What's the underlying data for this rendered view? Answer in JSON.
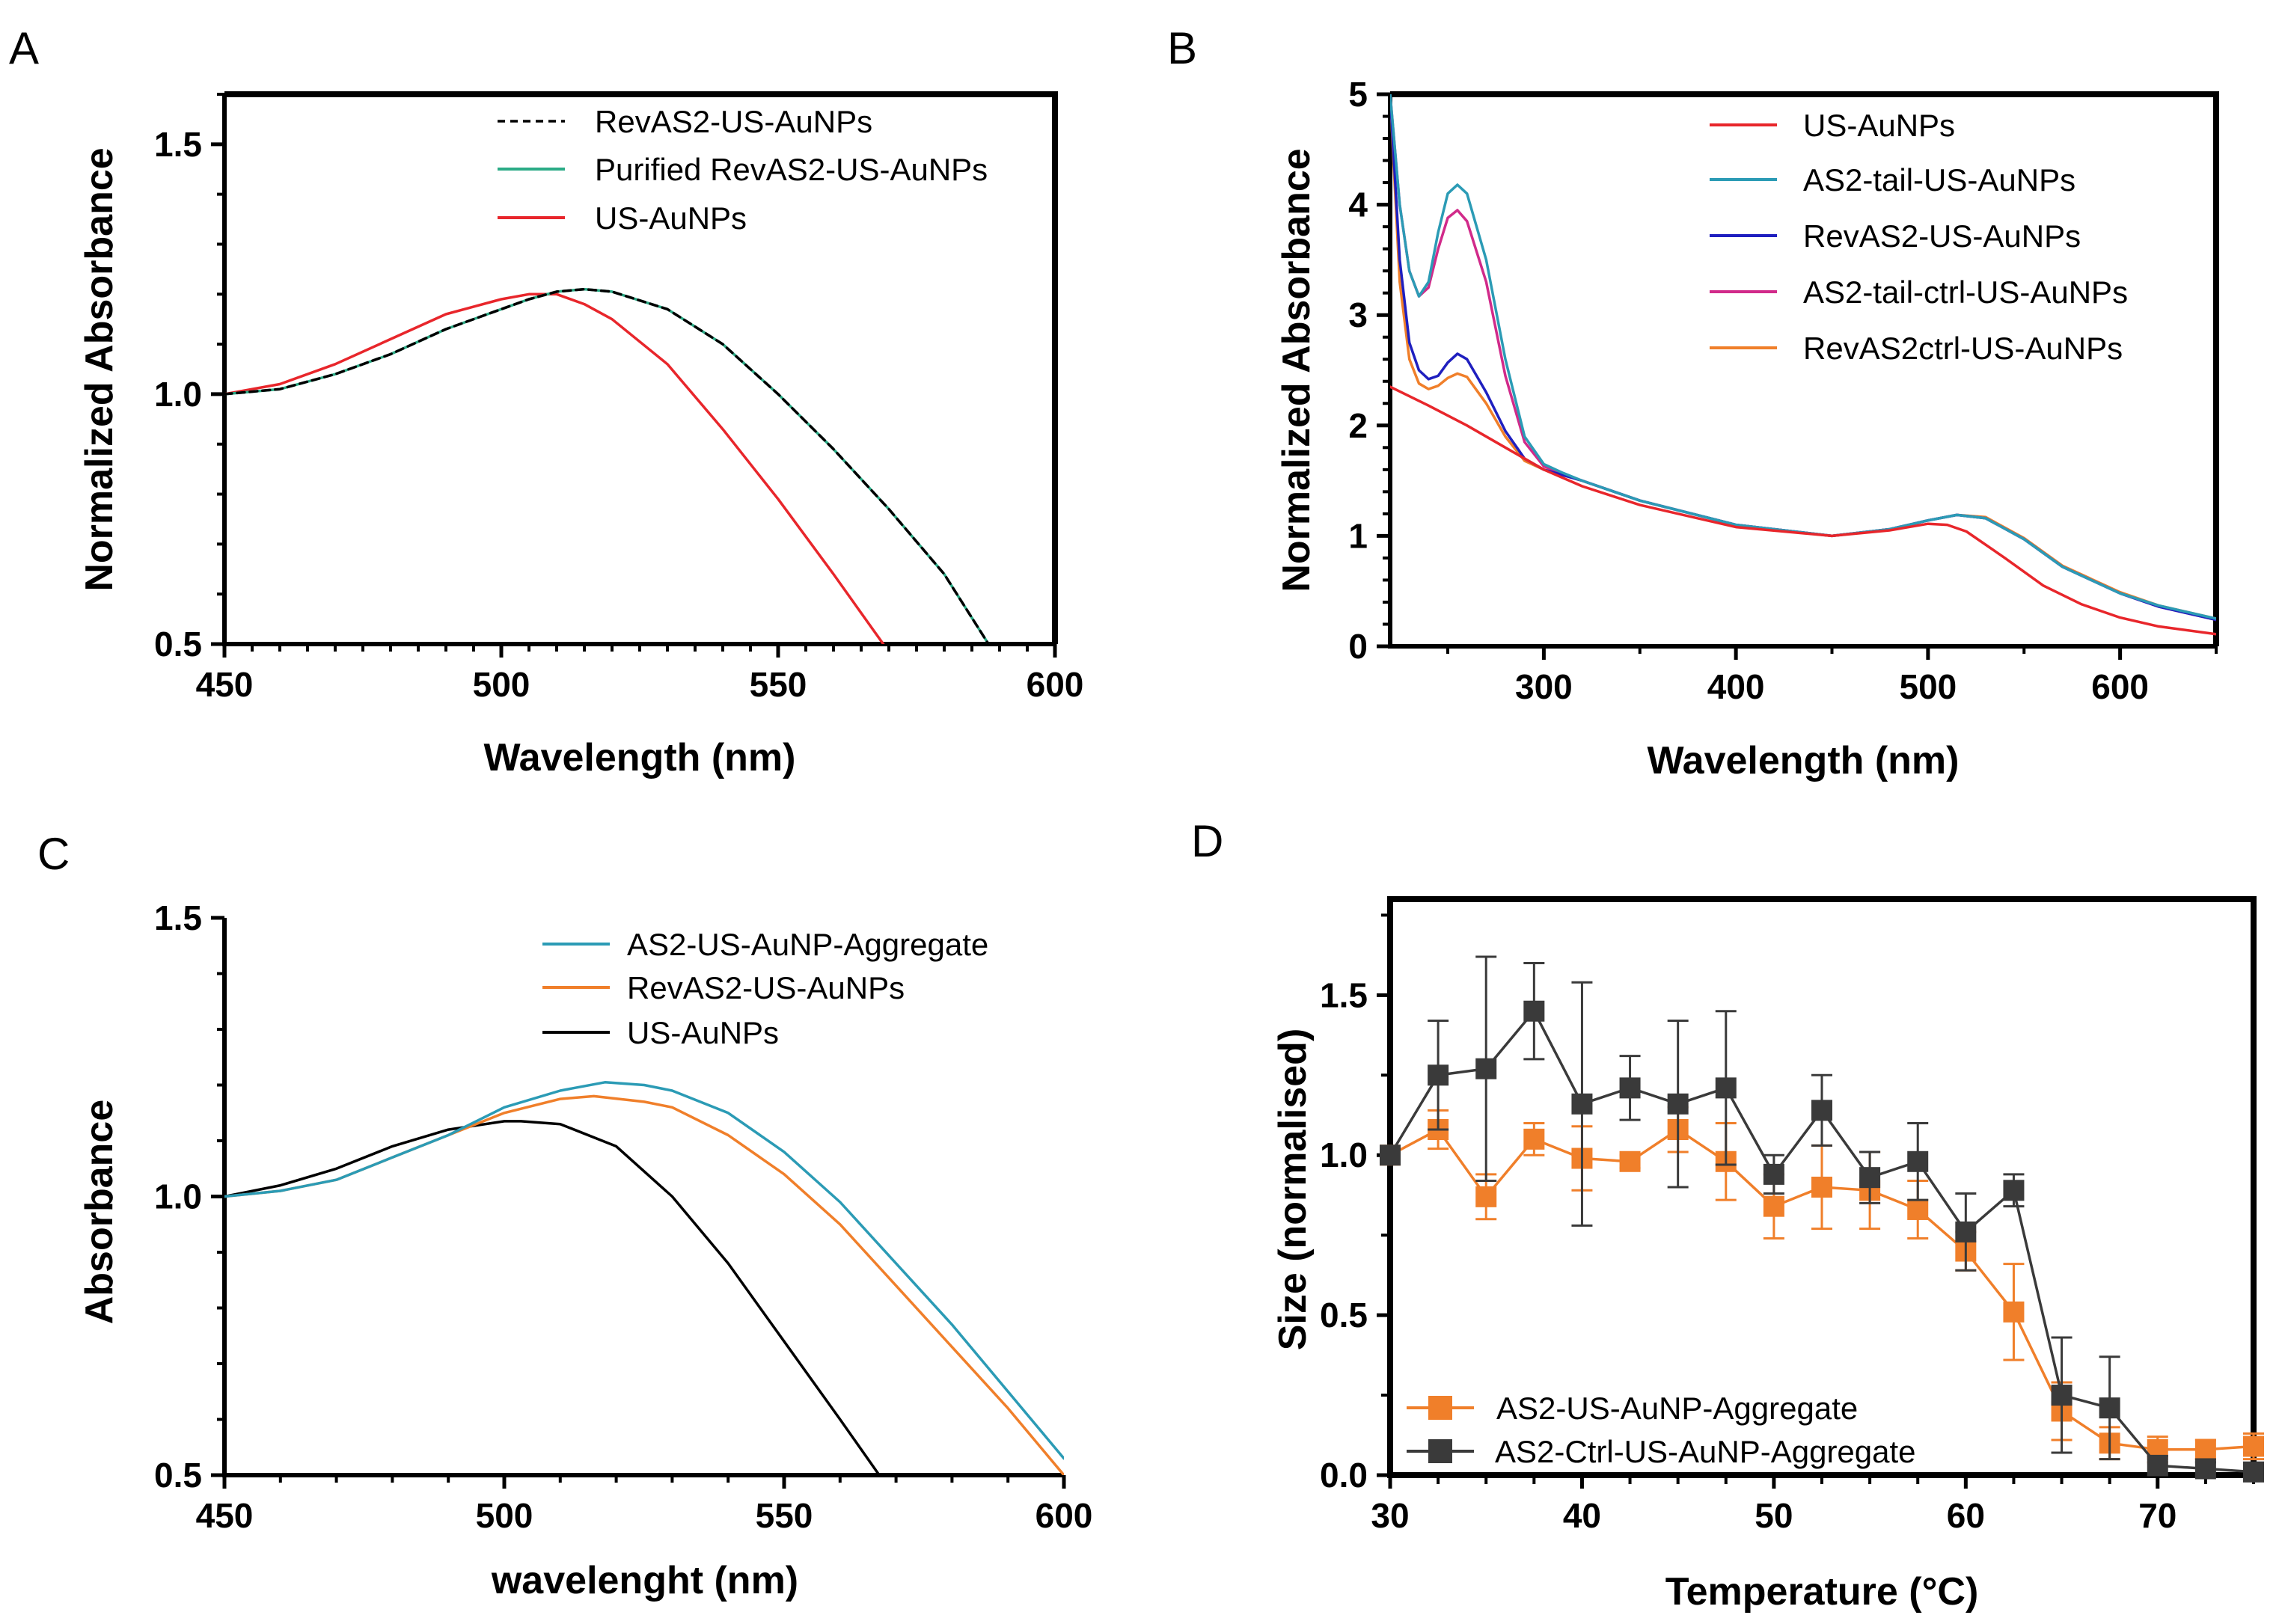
{
  "panels": [
    {
      "letter": "A",
      "chart_data": {
        "type": "line",
        "title": "",
        "xlabel": "Wavelength (nm)",
        "ylabel": "Normalized Absorbance",
        "xlim": [
          450,
          600
        ],
        "ylim": [
          0.5,
          1.6
        ],
        "xticks": [
          450,
          500,
          550,
          600
        ],
        "xtick_labels": [
          "450",
          "500",
          "550",
          "600"
        ],
        "yticks": [
          0.5,
          1.0,
          1.5
        ],
        "ytick_labels": [
          "0.5",
          "1.0",
          "1.5"
        ],
        "grid": false,
        "legend_position": "top-center",
        "series": [
          {
            "name": "RevAS2-US-AuNPs",
            "color": "#000000",
            "dashed": true,
            "x": [
              450,
              460,
              470,
              480,
              490,
              500,
              505,
              510,
              515,
              520,
              530,
              540,
              550,
              560,
              570,
              580,
              588
            ],
            "y": [
              1.0,
              1.01,
              1.04,
              1.08,
              1.13,
              1.17,
              1.19,
              1.205,
              1.21,
              1.205,
              1.17,
              1.1,
              1.0,
              0.89,
              0.77,
              0.64,
              0.5
            ]
          },
          {
            "name": "Purified RevAS2-US-AuNPs",
            "color": "#2bab86",
            "dashed": false,
            "x": [
              450,
              460,
              470,
              480,
              490,
              500,
              505,
              510,
              515,
              520,
              530,
              540,
              550,
              560,
              570,
              580,
              588
            ],
            "y": [
              1.0,
              1.01,
              1.04,
              1.08,
              1.13,
              1.17,
              1.19,
              1.205,
              1.21,
              1.205,
              1.17,
              1.1,
              1.0,
              0.89,
              0.77,
              0.64,
              0.5
            ]
          },
          {
            "name": "US-AuNPs",
            "color": "#e8262b",
            "dashed": false,
            "x": [
              450,
              460,
              470,
              480,
              490,
              500,
              505,
              510,
              515,
              520,
              530,
              540,
              550,
              560,
              569
            ],
            "y": [
              1.0,
              1.02,
              1.06,
              1.11,
              1.16,
              1.19,
              1.2,
              1.2,
              1.18,
              1.15,
              1.06,
              0.93,
              0.79,
              0.64,
              0.5
            ]
          }
        ]
      }
    },
    {
      "letter": "B",
      "chart_data": {
        "type": "line",
        "title": "",
        "xlabel": "Wavelength (nm)",
        "ylabel": "Normalized Absorbance",
        "xlim": [
          220,
          650
        ],
        "ylim": [
          0,
          5
        ],
        "xticks": [
          300,
          400,
          500,
          600
        ],
        "xtick_labels": [
          "300",
          "400",
          "500",
          "600"
        ],
        "yticks": [
          0,
          1,
          2,
          3,
          4,
          5
        ],
        "ytick_labels": [
          "0",
          "1",
          "2",
          "3",
          "4",
          "5"
        ],
        "grid": false,
        "legend_position": "top-right",
        "series": [
          {
            "name": "US-AuNPs",
            "color": "#e8262b",
            "x": [
              220,
              240,
              260,
              280,
              300,
              320,
              350,
              400,
              450,
              480,
              500,
              510,
              520,
              540,
              560,
              580,
              600,
              620,
              650
            ],
            "y": [
              2.35,
              2.18,
              2.0,
              1.8,
              1.6,
              1.45,
              1.28,
              1.08,
              1.0,
              1.05,
              1.11,
              1.1,
              1.04,
              0.8,
              0.55,
              0.38,
              0.26,
              0.18,
              0.11
            ]
          },
          {
            "name": "AS2-tail-US-AuNPs",
            "color": "#2b9bb5",
            "x": [
              220,
              225,
              230,
              235,
              240,
              245,
              250,
              255,
              260,
              270,
              280,
              290,
              300,
              310,
              320,
              350,
              400,
              450,
              480,
              500,
              515,
              530,
              550,
              570,
              600,
              620,
              650
            ],
            "y": [
              5.0,
              4.0,
              3.4,
              3.17,
              3.3,
              3.75,
              4.1,
              4.18,
              4.1,
              3.5,
              2.6,
              1.9,
              1.65,
              1.57,
              1.5,
              1.32,
              1.1,
              1.0,
              1.06,
              1.14,
              1.19,
              1.16,
              0.97,
              0.72,
              0.48,
              0.37,
              0.25
            ]
          },
          {
            "name": "RevAS2-US-AuNPs",
            "color": "#1f1fbf",
            "x": [
              220,
              225,
              230,
              235,
              240,
              245,
              250,
              255,
              260,
              270,
              280,
              290,
              300,
              310,
              320,
              350,
              400,
              450,
              480,
              500,
              515,
              530,
              550,
              570,
              600,
              620,
              650
            ],
            "y": [
              5.0,
              3.5,
              2.75,
              2.5,
              2.42,
              2.45,
              2.57,
              2.65,
              2.6,
              2.3,
              1.95,
              1.7,
              1.6,
              1.55,
              1.5,
              1.32,
              1.1,
              1.0,
              1.06,
              1.14,
              1.19,
              1.16,
              0.97,
              0.72,
              0.48,
              0.36,
              0.24
            ]
          },
          {
            "name": "AS2-tail-ctrl-US-AuNPs",
            "color": "#d12a8a",
            "x": [
              220,
              225,
              230,
              235,
              240,
              245,
              250,
              255,
              260,
              270,
              280,
              290,
              300,
              310,
              320,
              350,
              400,
              450,
              480,
              500,
              515,
              530,
              550,
              570,
              600,
              620,
              650
            ],
            "y": [
              5.0,
              4.0,
              3.4,
              3.17,
              3.25,
              3.6,
              3.88,
              3.95,
              3.85,
              3.3,
              2.45,
              1.85,
              1.63,
              1.56,
              1.5,
              1.32,
              1.1,
              1.0,
              1.06,
              1.14,
              1.19,
              1.16,
              0.97,
              0.72,
              0.48,
              0.36,
              0.24
            ]
          },
          {
            "name": "RevAS2ctrl-US-AuNPs",
            "color": "#f07f2a",
            "x": [
              220,
              225,
              230,
              235,
              240,
              245,
              250,
              255,
              260,
              270,
              280,
              290,
              300,
              310,
              320,
              350,
              400,
              450,
              480,
              500,
              515,
              530,
              550,
              570,
              600,
              620,
              650
            ],
            "y": [
              5.0,
              3.3,
              2.6,
              2.38,
              2.33,
              2.36,
              2.43,
              2.47,
              2.44,
              2.2,
              1.9,
              1.68,
              1.6,
              1.55,
              1.5,
              1.32,
              1.1,
              1.0,
              1.06,
              1.14,
              1.19,
              1.17,
              0.98,
              0.73,
              0.49,
              0.37,
              0.25
            ]
          }
        ]
      }
    },
    {
      "letter": "C",
      "chart_data": {
        "type": "line",
        "title": "",
        "xlabel": "wavelenght (nm)",
        "ylabel": "Absorbance",
        "xlim": [
          450,
          600
        ],
        "ylim": [
          0.5,
          1.5
        ],
        "xticks": [
          450,
          500,
          550,
          600
        ],
        "xtick_labels": [
          "450",
          "500",
          "550",
          "600"
        ],
        "yticks": [
          0.5,
          1.0,
          1.5
        ],
        "ytick_labels": [
          "0.5",
          "1.0",
          "1.5"
        ],
        "grid": false,
        "legend_position": "top-right",
        "series": [
          {
            "name": "AS2-US-AuNP-Aggregate",
            "color": "#2b9bb5",
            "x": [
              450,
              460,
              470,
              480,
              490,
              500,
              510,
              518,
              525,
              530,
              540,
              550,
              560,
              570,
              580,
              590,
              600
            ],
            "y": [
              1.0,
              1.01,
              1.03,
              1.07,
              1.11,
              1.16,
              1.19,
              1.205,
              1.2,
              1.19,
              1.15,
              1.08,
              0.99,
              0.88,
              0.77,
              0.65,
              0.53
            ]
          },
          {
            "name": "RevAS2-US-AuNPs",
            "color": "#f07f2a",
            "x": [
              450,
              460,
              470,
              480,
              490,
              500,
              510,
              516,
              525,
              530,
              540,
              550,
              560,
              570,
              580,
              590,
              600
            ],
            "y": [
              1.0,
              1.01,
              1.03,
              1.07,
              1.11,
              1.15,
              1.175,
              1.18,
              1.17,
              1.16,
              1.11,
              1.04,
              0.95,
              0.84,
              0.73,
              0.62,
              0.5
            ]
          },
          {
            "name": "US-AuNPs",
            "color": "#000000",
            "x": [
              450,
              460,
              470,
              480,
              490,
              500,
              503,
              510,
              520,
              530,
              540,
              550,
              560,
              567
            ],
            "y": [
              1.0,
              1.02,
              1.05,
              1.09,
              1.12,
              1.135,
              1.135,
              1.13,
              1.09,
              1.0,
              0.88,
              0.74,
              0.6,
              0.5
            ]
          }
        ]
      }
    },
    {
      "letter": "D",
      "chart_data": {
        "type": "scatter",
        "title": "",
        "xlabel": "Temperature (°C)",
        "ylabel": "Size (normalised)",
        "xlim": [
          30,
          75
        ],
        "ylim": [
          0,
          1.8
        ],
        "xticks": [
          30,
          40,
          50,
          60,
          70
        ],
        "xtick_labels": [
          "30",
          "40",
          "50",
          "60",
          "70"
        ],
        "yticks": [
          0,
          0.5,
          1.0,
          1.5
        ],
        "ytick_labels": [
          "0.0",
          "0.5",
          "1.0",
          "1.5"
        ],
        "grid": false,
        "legend_position": "bottom-left",
        "x": [
          30,
          32.5,
          35,
          37.5,
          40,
          42.5,
          45,
          47.5,
          50,
          52.5,
          55,
          57.5,
          60,
          62.5,
          65,
          67.5,
          70,
          72.5,
          75
        ],
        "series": [
          {
            "name": "AS2-US-AuNP-Aggregate",
            "color": "#f07f2a",
            "y": [
              1.0,
              1.08,
              0.87,
              1.05,
              0.99,
              0.98,
              1.08,
              0.98,
              0.84,
              0.9,
              0.89,
              0.83,
              0.7,
              0.51,
              0.2,
              0.1,
              0.08,
              0.08,
              0.09
            ],
            "err": [
              0,
              0.06,
              0.07,
              0.05,
              0.1,
              0.02,
              0.07,
              0.12,
              0.1,
              0.13,
              0.12,
              0.09,
              0.06,
              0.15,
              0.09,
              0.05,
              0.04,
              0.03,
              0.04
            ]
          },
          {
            "name": "AS2-Ctrl-US-AuNP-Aggregate",
            "color": "#3a3a3a",
            "y": [
              1.0,
              1.25,
              1.27,
              1.45,
              1.16,
              1.21,
              1.16,
              1.21,
              0.94,
              1.14,
              0.93,
              0.98,
              0.76,
              0.89,
              0.25,
              0.21,
              0.03,
              0.02,
              0.01
            ],
            "err": [
              0,
              0.17,
              0.35,
              0.15,
              0.38,
              0.1,
              0.26,
              0.24,
              0.06,
              0.11,
              0.08,
              0.12,
              0.12,
              0.05,
              0.18,
              0.16,
              0.03,
              0.02,
              0.01
            ]
          }
        ]
      }
    }
  ]
}
